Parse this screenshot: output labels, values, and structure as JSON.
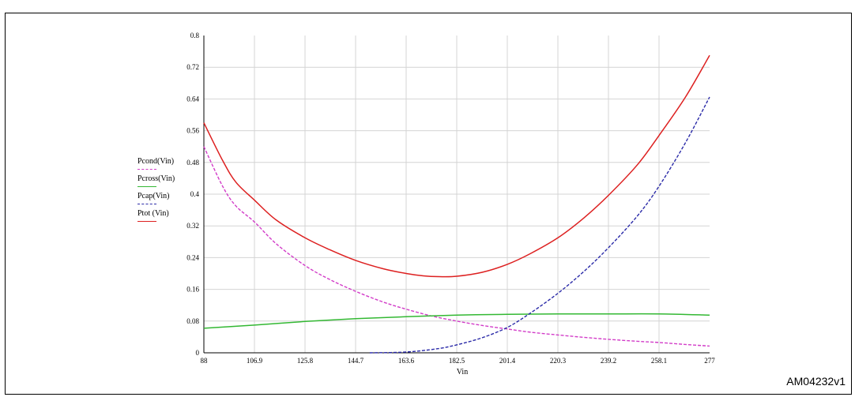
{
  "figure": {
    "caption_fragment": "",
    "ref_id": "AM04232v1"
  },
  "chart_data": {
    "type": "line",
    "title": "",
    "xlabel": "Vin",
    "ylabel": "",
    "xlim": [
      88,
      277
    ],
    "ylim": [
      0,
      0.8
    ],
    "x_ticks": [
      "88",
      "106.9",
      "125.8",
      "144.7",
      "163.6",
      "182.5",
      "201.4",
      "220.3",
      "239.2",
      "258.1",
      "277"
    ],
    "y_ticks": [
      "0",
      "0.08",
      "0.16",
      "0.24",
      "0.32",
      "0.4",
      "0.48",
      "0.56",
      "0.64",
      "0.72",
      "0.8"
    ],
    "grid": true,
    "legend_position": "left",
    "series": [
      {
        "name": "Pcond(Vin)",
        "color": "#d23cc8",
        "dash": "dashed",
        "x": [
          88,
          95,
          100,
          106.9,
          115,
          125.8,
          135,
          144.7,
          155,
          163.6,
          173,
          182.5,
          192,
          201.4,
          210,
          220.3,
          230,
          239.2,
          250,
          258.1,
          268,
          277
        ],
        "y": [
          0.52,
          0.42,
          0.37,
          0.33,
          0.275,
          0.22,
          0.185,
          0.155,
          0.128,
          0.11,
          0.093,
          0.08,
          0.069,
          0.06,
          0.052,
          0.045,
          0.039,
          0.034,
          0.029,
          0.026,
          0.021,
          0.017
        ]
      },
      {
        "name": "Pcross(Vin)",
        "color": "#33b833",
        "dash": "solid",
        "x": [
          88,
          106.9,
          125.8,
          144.7,
          163.6,
          182.5,
          201.4,
          220.3,
          239.2,
          258.1,
          277
        ],
        "y": [
          0.062,
          0.07,
          0.079,
          0.086,
          0.091,
          0.095,
          0.097,
          0.098,
          0.098,
          0.098,
          0.095
        ]
      },
      {
        "name": "Pcap(Vin)",
        "color": "#2a2aa8",
        "dash": "dashed",
        "x": [
          150,
          163.6,
          175,
          182.5,
          192,
          201.4,
          210,
          220.3,
          230,
          239.2,
          250,
          258.1,
          268,
          277
        ],
        "y": [
          0,
          0.002,
          0.01,
          0.02,
          0.038,
          0.064,
          0.1,
          0.15,
          0.205,
          0.265,
          0.345,
          0.42,
          0.53,
          0.645
        ]
      },
      {
        "name": "Ptot (Vin)",
        "color": "#dd2020",
        "dash": "solid",
        "x": [
          88,
          95,
          100,
          106.9,
          115,
          125.8,
          135,
          144.7,
          155,
          163.6,
          170,
          176,
          182.5,
          192,
          201.4,
          210,
          220.3,
          230,
          239.2,
          250,
          258.1,
          268,
          277
        ],
        "y": [
          0.58,
          0.485,
          0.43,
          0.385,
          0.335,
          0.29,
          0.26,
          0.233,
          0.212,
          0.2,
          0.194,
          0.192,
          0.193,
          0.203,
          0.223,
          0.25,
          0.29,
          0.34,
          0.397,
          0.474,
          0.548,
          0.645,
          0.75
        ]
      }
    ]
  }
}
